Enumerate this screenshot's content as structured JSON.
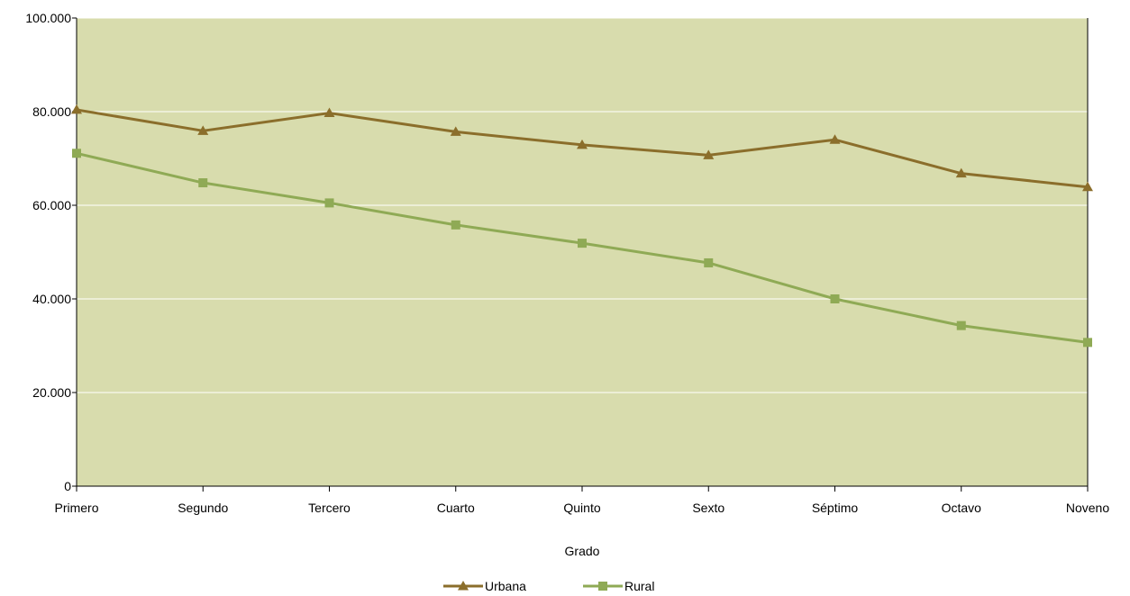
{
  "chart_data": {
    "type": "line",
    "title": "",
    "xlabel": "Grado",
    "ylabel": "",
    "categories": [
      "Primero",
      "Segundo",
      "Tercero",
      "Cuarto",
      "Quinto",
      "Sexto",
      "Séptimo",
      "Octavo",
      "Noveno"
    ],
    "yticks": [
      0,
      20000,
      40000,
      60000,
      80000,
      100000
    ],
    "ytick_labels": [
      "0",
      "20.000",
      "40.000",
      "60.000",
      "80.000",
      "100.000"
    ],
    "ylim": [
      0,
      100000
    ],
    "grid": true,
    "legend_position": "bottom",
    "plot_background": "#d8dcad",
    "series": [
      {
        "name": "Urbana",
        "values": [
          80400,
          75900,
          79700,
          75700,
          72900,
          70700,
          74000,
          66800,
          63900
        ],
        "color": "#8b6e2b",
        "marker": "triangle"
      },
      {
        "name": "Rural",
        "values": [
          71100,
          64800,
          60500,
          55800,
          51900,
          47700,
          40000,
          34300,
          30700
        ],
        "color": "#8faa55",
        "marker": "square"
      }
    ]
  }
}
